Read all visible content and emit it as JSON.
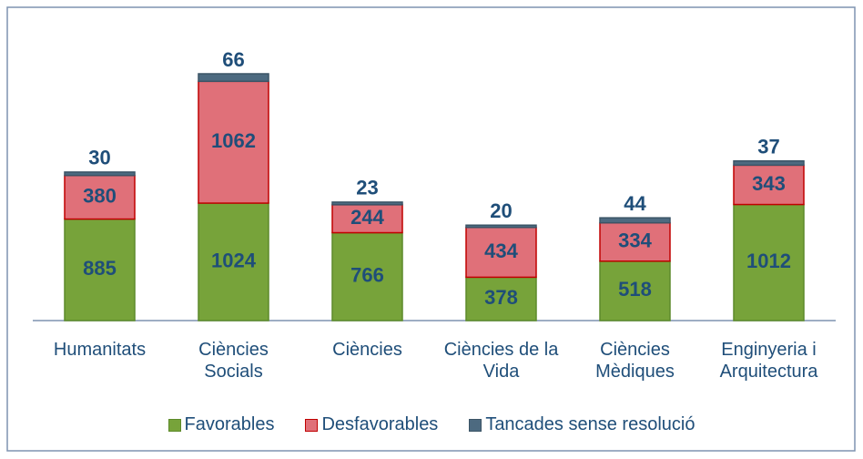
{
  "chart_data": {
    "type": "stacked_bar",
    "categories": [
      "Humanitats",
      "Ciències Socials",
      "Ciències",
      "Ciències de la Vida",
      "Ciències Mèdiques",
      "Enginyeria i Arquitectura"
    ],
    "series": [
      {
        "name": "Favorables",
        "color": "#77a33a",
        "values": [
          885,
          1024,
          766,
          378,
          518,
          1012
        ]
      },
      {
        "name": "Desfavorables",
        "color": "#e07079",
        "values": [
          380,
          1062,
          244,
          434,
          334,
          343
        ]
      },
      {
        "name": "Tancades sense resolució",
        "color": "#4d6a80",
        "values": [
          30,
          66,
          23,
          20,
          44,
          37
        ]
      }
    ],
    "legend": "bottom"
  }
}
